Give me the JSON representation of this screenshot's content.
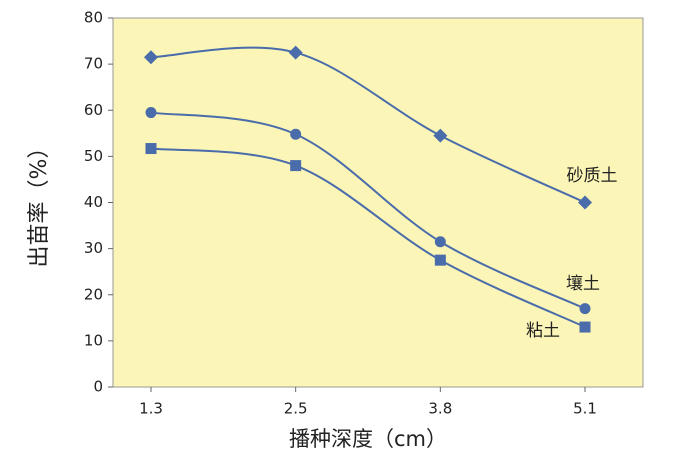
{
  "chart_data": {
    "type": "line",
    "x_label": "播种深度（cm）",
    "y_label": "出苗率（%）",
    "categories": [
      "1.3",
      "2.5",
      "3.8",
      "5.1"
    ],
    "series": [
      {
        "name": "砂质土",
        "color": "#4a6caa",
        "marker": "diamond",
        "values": [
          71.5,
          72.5,
          54.5,
          40
        ]
      },
      {
        "name": "壤土",
        "color": "#4a6caa",
        "marker": "circle",
        "values": [
          59.5,
          54.8,
          31.5,
          17
        ]
      },
      {
        "name": "粘土",
        "color": "#4a6caa",
        "marker": "square",
        "values": [
          51.7,
          48,
          27.5,
          13
        ]
      }
    ],
    "ylim": [
      0,
      80
    ],
    "yticks": [
      0,
      10,
      20,
      30,
      40,
      50,
      60,
      70,
      80
    ],
    "smooth": true,
    "plot_background": "#fbf5b7"
  }
}
